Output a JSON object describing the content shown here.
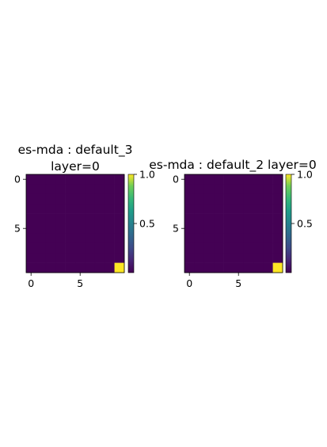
{
  "chart_data": [
    {
      "type": "heatmap",
      "title_lines": [
        "es-mda : default_3",
        "layer=0"
      ],
      "grid_size": 10,
      "values_note": "all cells 0 except cell at row 9, col 9 = 1",
      "hot_cell": {
        "row": 9,
        "col": 9,
        "value": 1.0
      },
      "xticks": [
        0,
        5
      ],
      "yticks": [
        0,
        5
      ],
      "colorbar": {
        "range": [
          0,
          1.0
        ],
        "ticks": [
          "1.0",
          "0.5"
        ]
      },
      "colors": {
        "low": "#440154",
        "high": "#fde725"
      }
    },
    {
      "type": "heatmap",
      "title_lines": [
        "es-mda : default_2 layer=0"
      ],
      "grid_size": 10,
      "values_note": "all cells 0 except cell at row 9, col 9 = 1",
      "hot_cell": {
        "row": 9,
        "col": 9,
        "value": 1.0
      },
      "xticks": [
        0,
        5
      ],
      "yticks": [
        0,
        5
      ],
      "colorbar": {
        "range": [
          0,
          1.0
        ],
        "ticks": [
          "1.0",
          "0.5"
        ]
      },
      "colors": {
        "low": "#440154",
        "high": "#fde725"
      }
    }
  ]
}
